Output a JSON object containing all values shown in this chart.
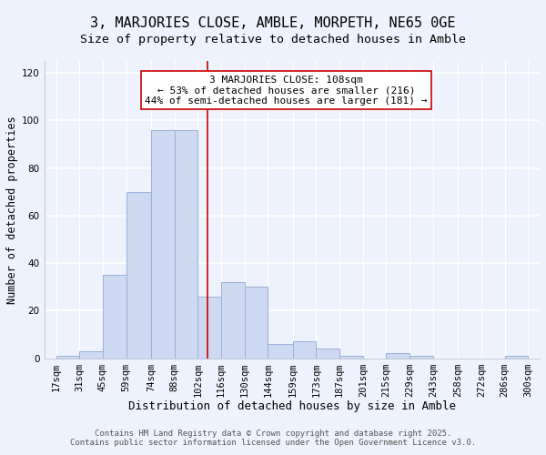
{
  "title": "3, MARJORIES CLOSE, AMBLE, MORPETH, NE65 0GE",
  "subtitle": "Size of property relative to detached houses in Amble",
  "xlabel": "Distribution of detached houses by size in Amble",
  "ylabel": "Number of detached properties",
  "bar_color": "#cdd9f0",
  "bar_edgecolor": "#9ab0d8",
  "bar_left_edges": [
    17,
    31,
    45,
    59,
    74,
    88,
    102,
    116,
    130,
    144,
    159,
    173,
    187,
    201,
    215,
    229,
    243,
    258,
    272,
    286
  ],
  "bar_widths": [
    14,
    14,
    14,
    15,
    14,
    14,
    14,
    14,
    14,
    15,
    14,
    14,
    14,
    14,
    14,
    14,
    15,
    14,
    14,
    14
  ],
  "bar_heights": [
    1,
    3,
    35,
    70,
    96,
    96,
    26,
    32,
    30,
    6,
    7,
    4,
    1,
    0,
    2,
    1,
    0,
    0,
    0,
    1
  ],
  "xlim": [
    10,
    307
  ],
  "ylim": [
    0,
    125
  ],
  "yticks": [
    0,
    20,
    40,
    60,
    80,
    100,
    120
  ],
  "xtick_labels": [
    "17sqm",
    "31sqm",
    "45sqm",
    "59sqm",
    "74sqm",
    "88sqm",
    "102sqm",
    "116sqm",
    "130sqm",
    "144sqm",
    "159sqm",
    "173sqm",
    "187sqm",
    "201sqm",
    "215sqm",
    "229sqm",
    "243sqm",
    "258sqm",
    "272sqm",
    "286sqm",
    "300sqm"
  ],
  "xtick_positions": [
    17,
    31,
    45,
    59,
    74,
    88,
    102,
    116,
    130,
    144,
    159,
    173,
    187,
    201,
    215,
    229,
    243,
    258,
    272,
    286,
    300
  ],
  "property_line_x": 108,
  "property_line_color": "#cc0000",
  "annotation_line1": "3 MARJORIES CLOSE: 108sqm",
  "annotation_line2": "← 53% of detached houses are smaller (216)",
  "annotation_line3": "44% of semi-detached houses are larger (181) →",
  "annotation_box_color": "#ffffff",
  "annotation_box_edgecolor": "#cc0000",
  "footer_line1": "Contains HM Land Registry data © Crown copyright and database right 2025.",
  "footer_line2": "Contains public sector information licensed under the Open Government Licence v3.0.",
  "background_color": "#eef2fc",
  "plot_bg_color": "#eef2fc",
  "grid_color": "#ffffff",
  "title_fontsize": 11,
  "subtitle_fontsize": 9.5,
  "xlabel_fontsize": 9,
  "ylabel_fontsize": 8.5,
  "tick_fontsize": 7.5,
  "annotation_fontsize": 8,
  "footer_fontsize": 6.5
}
